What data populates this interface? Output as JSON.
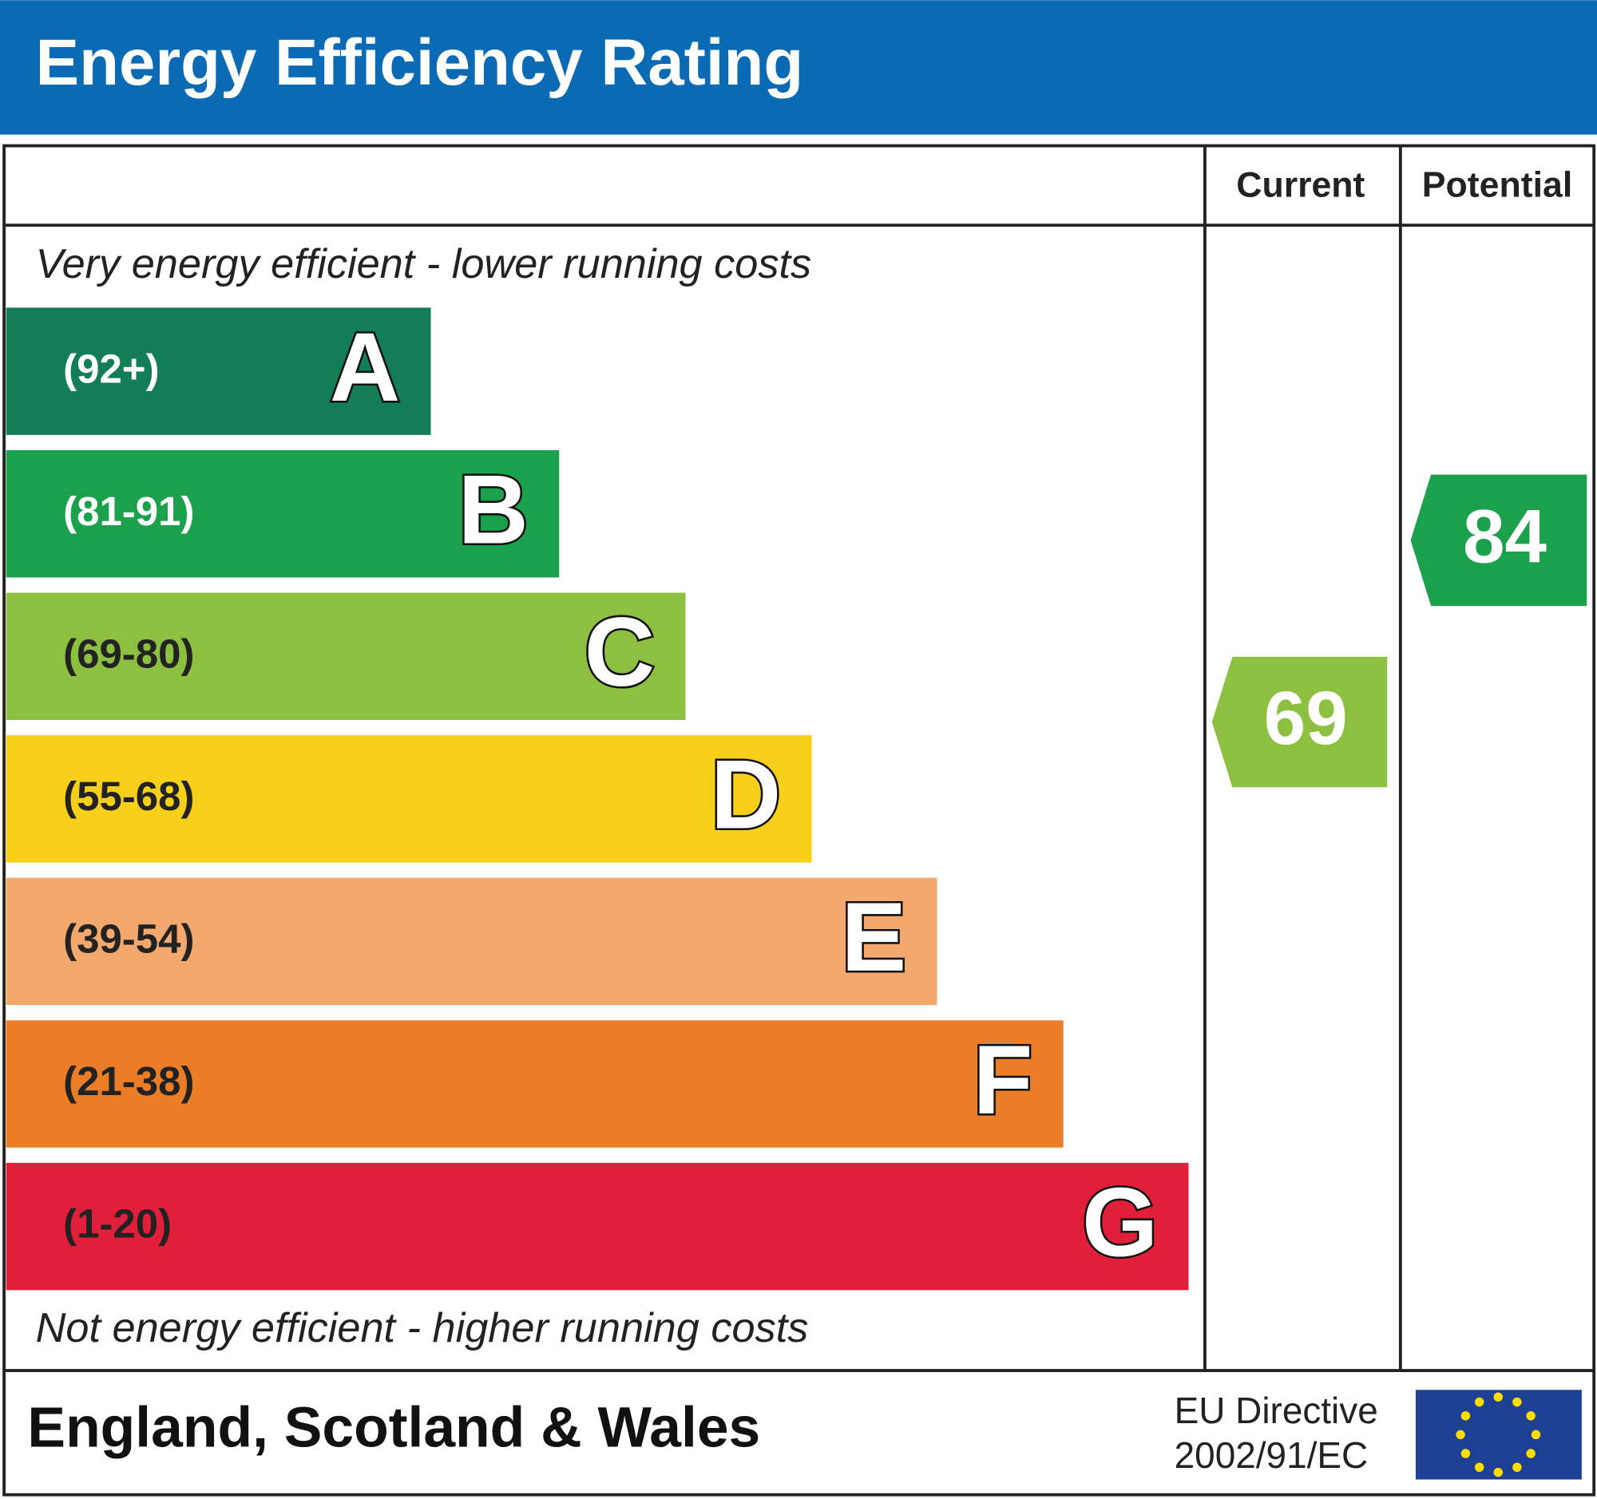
{
  "header": {
    "title": "Energy Efficiency Rating"
  },
  "columns": {
    "current": "Current",
    "potential": "Potential"
  },
  "top_note": "Very energy efficient - lower running costs",
  "bottom_note": "Not energy efficient - higher running costs",
  "bands": [
    {
      "range": "(92+)",
      "letter": "A",
      "color": "#137e56",
      "text_color": "#ffffff"
    },
    {
      "range": "(81-91)",
      "letter": "B",
      "color": "#1ba04c",
      "text_color": "#ffffff"
    },
    {
      "range": "(69-80)",
      "letter": "C",
      "color": "#8dbf40",
      "text_color": "#222222"
    },
    {
      "range": "(55-68)",
      "letter": "D",
      "color": "#f6cf1a",
      "text_color": "#222222"
    },
    {
      "range": "(39-54)",
      "letter": "E",
      "color": "#f3a96e",
      "text_color": "#222222"
    },
    {
      "range": "(21-38)",
      "letter": "F",
      "color": "#ec7d27",
      "text_color": "#222222"
    },
    {
      "range": "(1-20)",
      "letter": "G",
      "color": "#e21f3a",
      "text_color": "#222222"
    }
  ],
  "current": {
    "value": "69",
    "color": "#8dbf40"
  },
  "potential": {
    "value": "84",
    "color": "#1ba04c"
  },
  "footer": {
    "region": "England, Scotland & Wales",
    "directive_line1": "EU Directive",
    "directive_line2": "2002/91/EC"
  }
}
